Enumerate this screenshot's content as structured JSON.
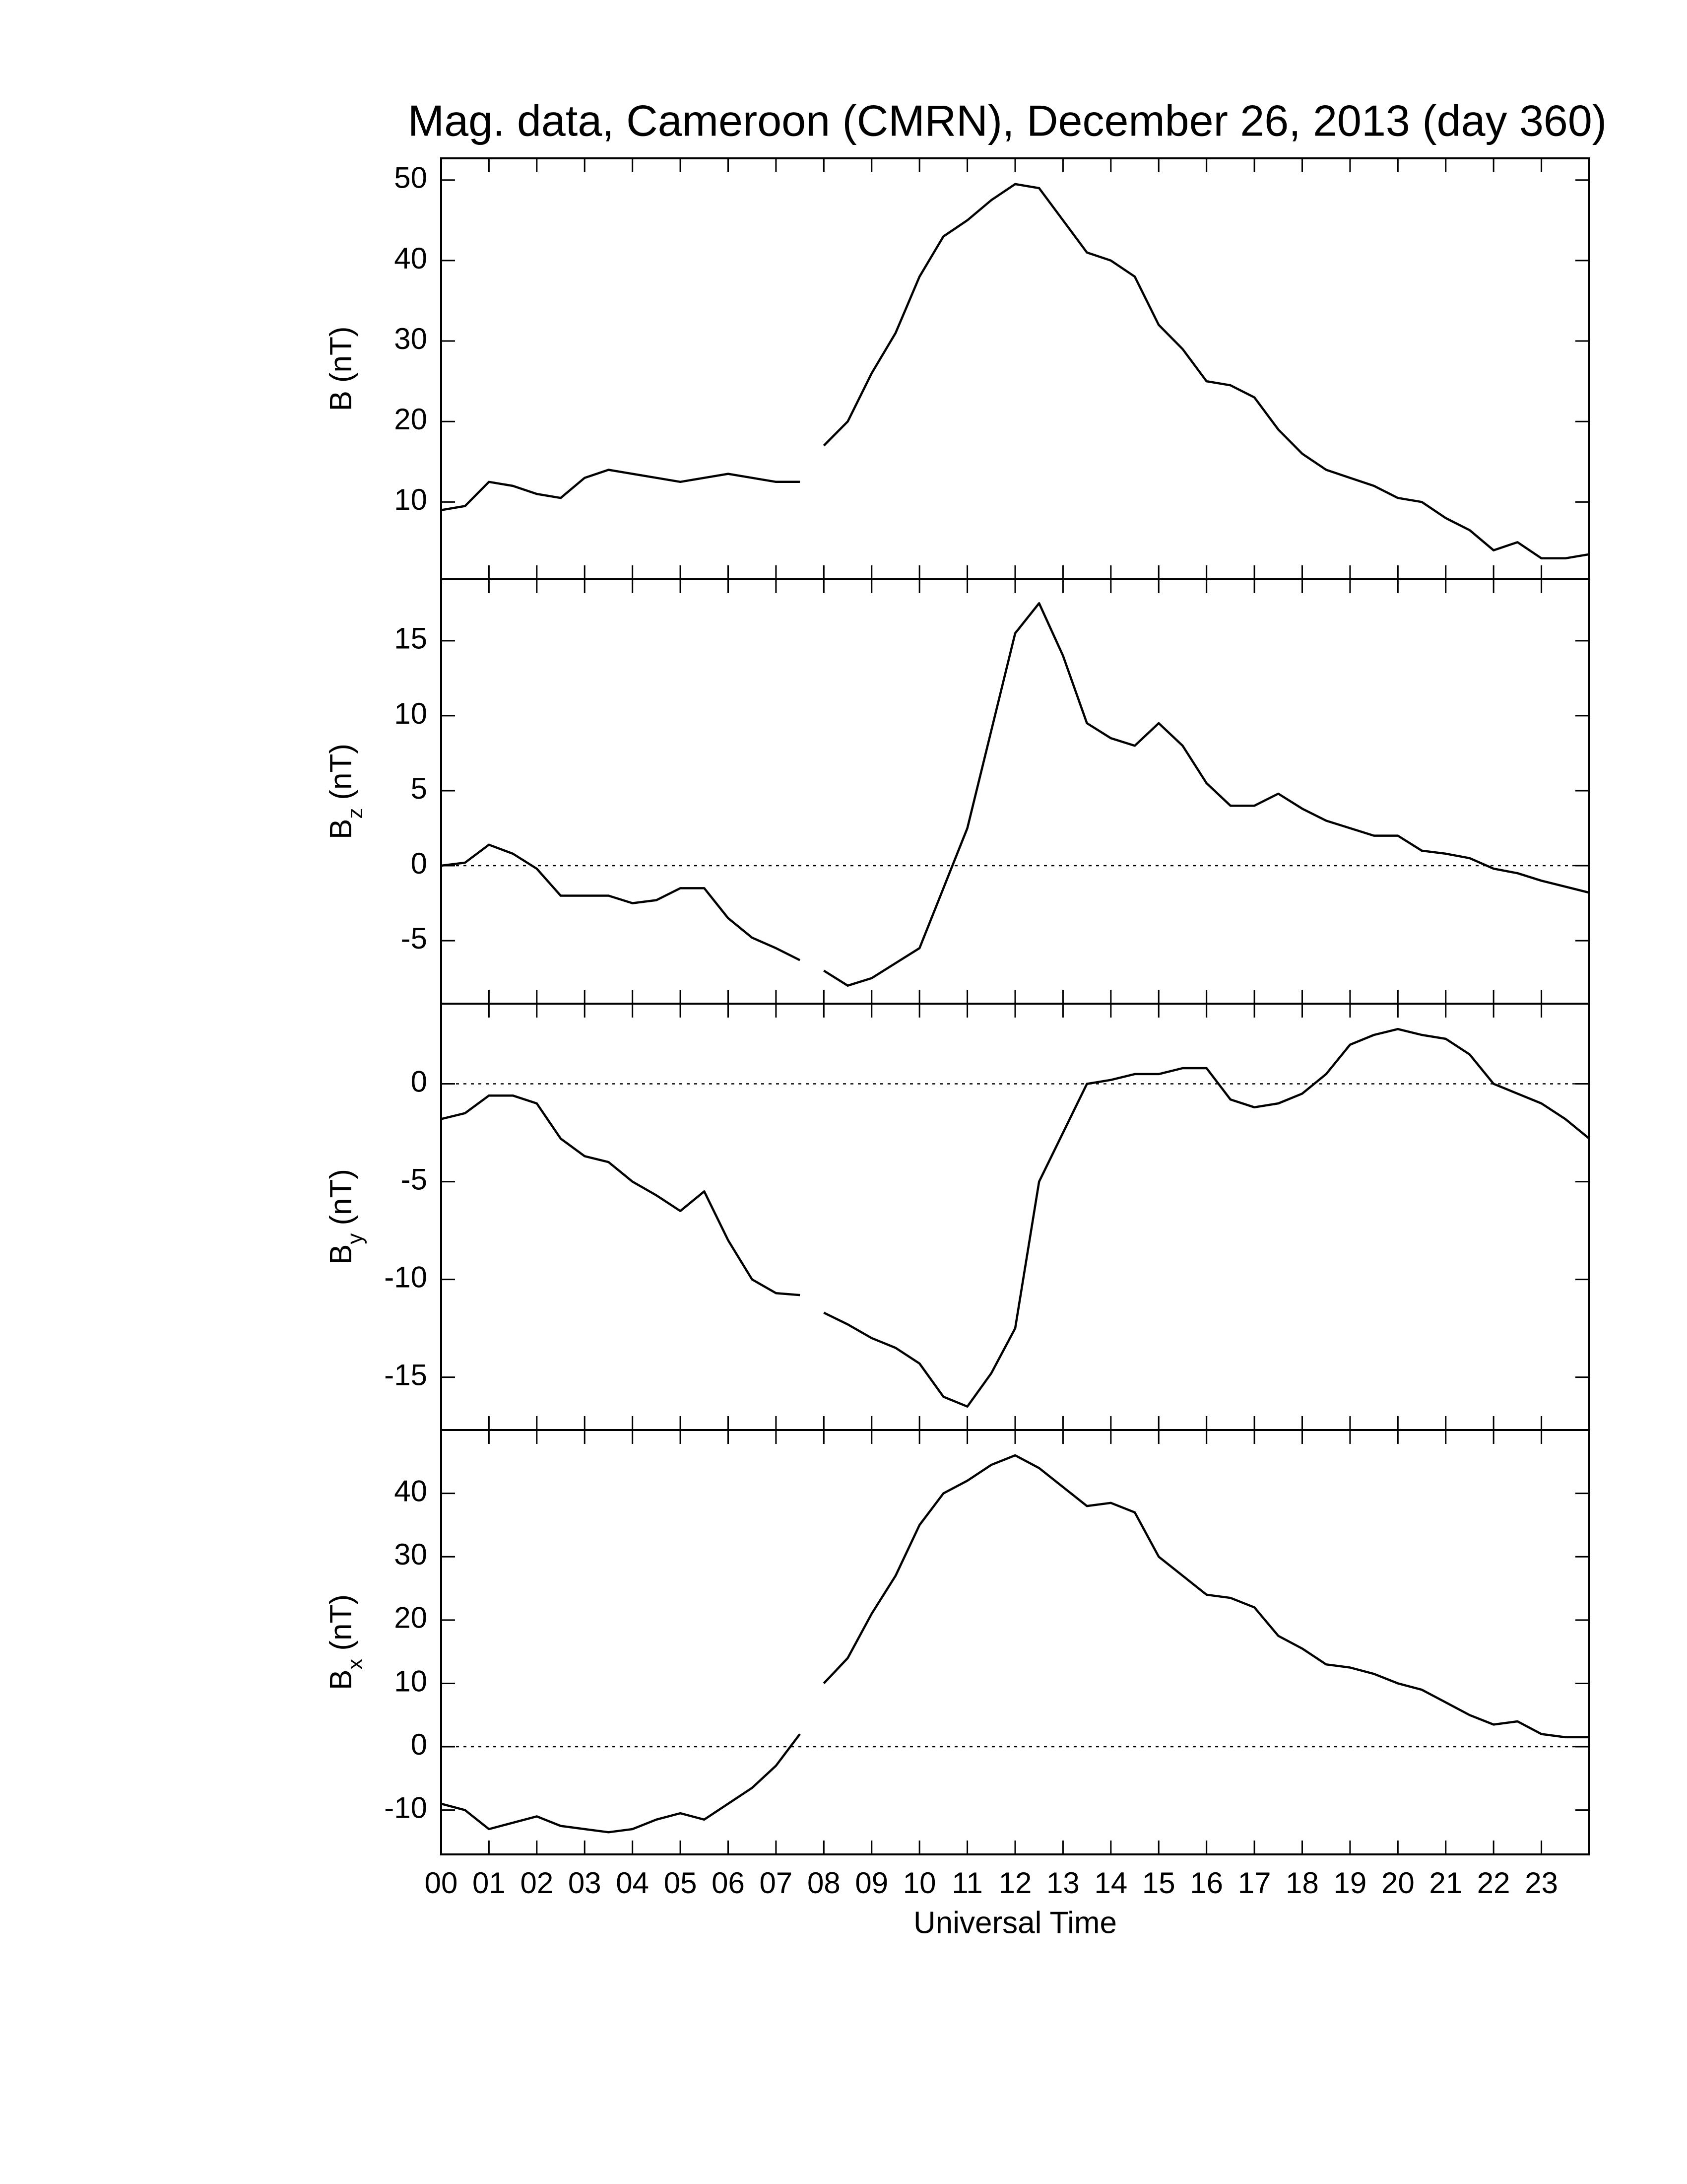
{
  "chart_data": [
    {
      "type": "line",
      "title": "Mag. data, Cameroon (CMRN), December 26, 2013 (day 360)",
      "ylabel": "B",
      "ylabel_unit": "(nT)",
      "color": "#000000",
      "x": [
        0,
        0.5,
        1,
        1.5,
        2,
        2.5,
        3,
        3.5,
        4,
        4.5,
        5,
        5.5,
        6,
        6.5,
        7,
        7.5,
        7.75,
        8,
        8.5,
        9,
        9.5,
        10,
        10.5,
        11,
        11.5,
        12,
        12.5,
        13,
        13.5,
        14,
        14.5,
        15,
        15.5,
        16,
        16.5,
        17,
        17.5,
        18,
        18.5,
        19,
        19.5,
        20,
        20.5,
        21,
        21.5,
        22,
        22.5,
        23,
        23.5,
        24
      ],
      "values": [
        9,
        9.5,
        12.5,
        12,
        11,
        10.5,
        13,
        14,
        13.5,
        13,
        12.5,
        13,
        13.5,
        13,
        12.5,
        12.5,
        null,
        17,
        20,
        26,
        31,
        38,
        43,
        45,
        47.5,
        49.5,
        49,
        45,
        41,
        40,
        38,
        32,
        29,
        25,
        24.5,
        23,
        19,
        16,
        14,
        13,
        12,
        10.5,
        10,
        8,
        6.5,
        4,
        5,
        3,
        3,
        3.5
      ],
      "xlim": [
        0,
        24
      ],
      "ylim": [
        0.4,
        52.7
      ],
      "yticks": [
        10,
        20,
        30,
        40,
        50
      ]
    },
    {
      "type": "line",
      "ylabel": "B",
      "ylabel_sub": "z",
      "ylabel_unit": "(nT)",
      "color": "#000000",
      "zero_line": true,
      "x": [
        0,
        0.5,
        1,
        1.5,
        2,
        2.5,
        3,
        3.5,
        4,
        4.5,
        5,
        5.5,
        6,
        6.5,
        7,
        7.5,
        7.75,
        8,
        8.5,
        9,
        9.5,
        10,
        10.5,
        11,
        11.5,
        12,
        12.5,
        13,
        13.5,
        14,
        14.5,
        15,
        15.5,
        16,
        16.5,
        17,
        17.5,
        18,
        18.5,
        19,
        19.5,
        20,
        20.5,
        21,
        21.5,
        22,
        22.5,
        23,
        23.5,
        24
      ],
      "values": [
        0,
        0.2,
        1.4,
        0.8,
        -0.2,
        -2,
        -2,
        -2,
        -2.5,
        -2.3,
        -1.5,
        -1.5,
        -3.5,
        -4.8,
        -5.5,
        -6.3,
        null,
        -7,
        -8,
        -7.5,
        -6.5,
        -5.5,
        -1.5,
        2.5,
        9,
        15.5,
        17.5,
        14,
        9.5,
        8.5,
        8,
        9.5,
        8,
        5.5,
        4,
        4,
        4.8,
        3.8,
        3,
        2.5,
        2,
        2,
        1,
        0.8,
        0.5,
        -0.2,
        -0.5,
        -1,
        -1.4,
        -1.8
      ],
      "xlim": [
        0,
        24
      ],
      "ylim": [
        -9.2,
        19.1
      ],
      "yticks": [
        -5,
        0,
        5,
        10,
        15
      ]
    },
    {
      "type": "line",
      "ylabel": "B",
      "ylabel_sub": "y",
      "ylabel_unit": "(nT)",
      "color": "#000000",
      "zero_line": true,
      "x": [
        0,
        0.5,
        1,
        1.5,
        2,
        2.5,
        3,
        3.5,
        4,
        4.5,
        5,
        5.5,
        6,
        6.5,
        7,
        7.5,
        7.75,
        8,
        8.5,
        9,
        9.5,
        10,
        10.5,
        11,
        11.5,
        12,
        12.5,
        13,
        13.5,
        14,
        14.5,
        15,
        15.5,
        16,
        16.5,
        17,
        17.5,
        18,
        18.5,
        19,
        19.5,
        20,
        20.5,
        21,
        21.5,
        22,
        22.5,
        23,
        23.5,
        24
      ],
      "values": [
        -1.8,
        -1.5,
        -0.6,
        -0.6,
        -1,
        -2.8,
        -3.7,
        -4,
        -5,
        -5.7,
        -6.5,
        -5.5,
        -8,
        -10,
        -10.7,
        -10.8,
        null,
        -11.7,
        -12.3,
        -13,
        -13.5,
        -14.3,
        -16,
        -16.5,
        -14.8,
        -12.5,
        -5,
        -2.5,
        0,
        0.2,
        0.5,
        0.5,
        0.8,
        0.8,
        -0.8,
        -1.2,
        -1,
        -0.5,
        0.5,
        2,
        2.5,
        2.8,
        2.5,
        2.3,
        1.5,
        0,
        -0.5,
        -1,
        -1.8,
        -2.8
      ],
      "xlim": [
        0,
        24
      ],
      "ylim": [
        -17.7,
        4.1
      ],
      "yticks": [
        -15,
        -10,
        -5,
        0
      ]
    },
    {
      "type": "line",
      "ylabel": "B",
      "ylabel_sub": "x",
      "ylabel_unit": "(nT)",
      "xlabel": "Universal Time",
      "color": "#000000",
      "zero_line": true,
      "x": [
        0,
        0.5,
        1,
        1.5,
        2,
        2.5,
        3,
        3.5,
        4,
        4.5,
        5,
        5.5,
        6,
        6.5,
        7,
        7.5,
        7.75,
        8,
        8.5,
        9,
        9.5,
        10,
        10.5,
        11,
        11.5,
        12,
        12.5,
        13,
        13.5,
        14,
        14.5,
        15,
        15.5,
        16,
        16.5,
        17,
        17.5,
        18,
        18.5,
        19,
        19.5,
        20,
        20.5,
        21,
        21.5,
        22,
        22.5,
        23,
        23.5,
        24
      ],
      "values": [
        -9,
        -10,
        -13,
        -12,
        -11,
        -12.5,
        -13,
        -13.5,
        -13,
        -11.5,
        -10.5,
        -11.5,
        -9,
        -6.5,
        -3,
        2,
        null,
        10,
        14,
        21,
        27,
        35,
        40,
        42,
        44.5,
        46,
        44,
        41,
        38,
        38.5,
        37,
        30,
        27,
        24,
        23.5,
        22,
        17.5,
        15.5,
        13,
        12.5,
        11.5,
        10,
        9,
        7,
        5,
        3.5,
        4,
        2,
        1.5,
        1.5
      ],
      "xlim": [
        0,
        24
      ],
      "ylim": [
        -17,
        50
      ],
      "yticks": [
        -10,
        0,
        10,
        20,
        30,
        40
      ],
      "xticks": [
        {
          "value": 0,
          "label": "00"
        },
        {
          "value": 1,
          "label": "01"
        },
        {
          "value": 2,
          "label": "02"
        },
        {
          "value": 3,
          "label": "03"
        },
        {
          "value": 4,
          "label": "04"
        },
        {
          "value": 5,
          "label": "05"
        },
        {
          "value": 6,
          "label": "06"
        },
        {
          "value": 7,
          "label": "07"
        },
        {
          "value": 8,
          "label": "08"
        },
        {
          "value": 9,
          "label": "09"
        },
        {
          "value": 10,
          "label": "10"
        },
        {
          "value": 11,
          "label": "11"
        },
        {
          "value": 12,
          "label": "12"
        },
        {
          "value": 13,
          "label": "13"
        },
        {
          "value": 14,
          "label": "14"
        },
        {
          "value": 15,
          "label": "15"
        },
        {
          "value": 16,
          "label": "16"
        },
        {
          "value": 17,
          "label": "17"
        },
        {
          "value": 18,
          "label": "18"
        },
        {
          "value": 19,
          "label": "19"
        },
        {
          "value": 20,
          "label": "20"
        },
        {
          "value": 21,
          "label": "21"
        },
        {
          "value": 22,
          "label": "22"
        },
        {
          "value": 23,
          "label": "23"
        }
      ]
    }
  ]
}
